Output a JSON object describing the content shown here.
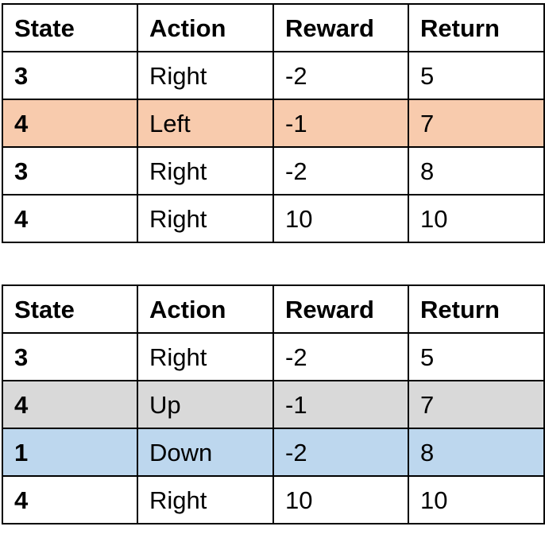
{
  "tables": [
    {
      "headers": [
        "State",
        "Action",
        "Reward",
        "Return"
      ],
      "rows": [
        {
          "state": "3",
          "action": "Right",
          "reward": "-2",
          "return": "5",
          "highlight": null
        },
        {
          "state": "4",
          "action": "Left",
          "reward": "-1",
          "return": "7",
          "highlight": "#f8cbad"
        },
        {
          "state": "3",
          "action": "Right",
          "reward": "-2",
          "return": "8",
          "highlight": null
        },
        {
          "state": "4",
          "action": "Right",
          "reward": "10",
          "return": "10",
          "highlight": null
        }
      ]
    },
    {
      "headers": [
        "State",
        "Action",
        "Reward",
        "Return"
      ],
      "rows": [
        {
          "state": "3",
          "action": "Right",
          "reward": "-2",
          "return": "5",
          "highlight": null
        },
        {
          "state": "4",
          "action": "Up",
          "reward": "-1",
          "return": "7",
          "highlight": "#d9d9d9"
        },
        {
          "state": "1",
          "action": "Down",
          "reward": "-2",
          "return": "8",
          "highlight": "#bdd7ee"
        },
        {
          "state": "4",
          "action": "Right",
          "reward": "10",
          "return": "10",
          "highlight": null
        }
      ]
    }
  ]
}
